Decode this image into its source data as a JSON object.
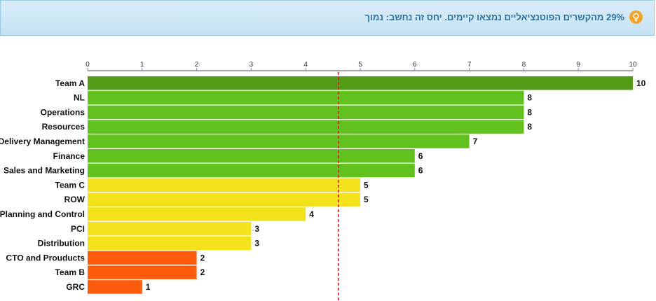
{
  "banner": {
    "text": "29% מהקשרים הפוטנציאליים נמצאו קיימים. יחס זה נחשב: נמוך",
    "icon": "lightbulb-icon",
    "icon_color": "#f0a325",
    "text_color": "#2f6f9d"
  },
  "chart_data": {
    "type": "bar",
    "orientation": "horizontal",
    "categories": [
      "Team A",
      "NL",
      "Operations",
      "Resources",
      "Delivery Management",
      "Finance",
      "Sales and Marketing",
      "Team C",
      "ROW",
      "Planning and Control",
      "PCI",
      "Distribution",
      "CTO and Prouducts",
      "Team B",
      "GRC"
    ],
    "values": [
      10,
      8,
      8,
      8,
      7,
      6,
      6,
      5,
      5,
      4,
      3,
      3,
      2,
      2,
      1
    ],
    "colors": [
      "#549c18",
      "#63c11f",
      "#63c11f",
      "#63c11f",
      "#63c11f",
      "#63c11f",
      "#63c11f",
      "#f3e21b",
      "#f3e21b",
      "#f3e21b",
      "#f3e21b",
      "#f3e21b",
      "#fd5c0c",
      "#fd5c0c",
      "#fd5c0c"
    ],
    "xlim": [
      0,
      10
    ],
    "xticks": [
      "0",
      "1",
      "2",
      "3",
      "4",
      "5",
      "6",
      "7",
      "8",
      "9",
      "10"
    ],
    "axis_position": "top",
    "reference_line": {
      "value": 4.6,
      "style": "dashed",
      "color": "#cc2222"
    },
    "grid": false
  }
}
